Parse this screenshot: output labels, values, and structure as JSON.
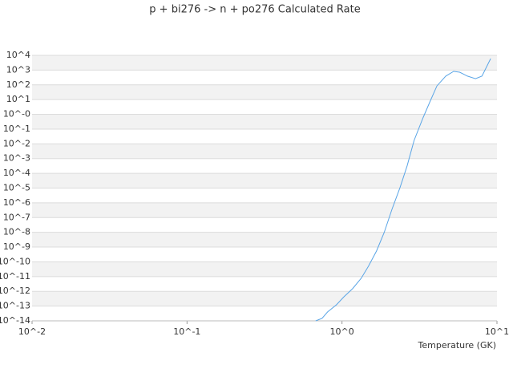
{
  "chart_data": {
    "type": "line",
    "title": "p + bi276 -> n + po276 Calculated Rate",
    "x_label": "Temperature (GK)",
    "log_x": true,
    "log_y": true,
    "grid": true,
    "xlim": [
      0.01,
      10
    ],
    "xticks": [
      {
        "value": 0.01,
        "label": "10^-2"
      },
      {
        "value": 0.1,
        "label": "10^-1"
      },
      {
        "value": 1,
        "label": "10^0"
      },
      {
        "value": 10,
        "label": "10^1"
      }
    ],
    "ylim": [
      1e-14,
      10000
    ],
    "yticks": [
      {
        "value": 1e-14,
        "label": "10^-14"
      },
      {
        "value": 1e-13,
        "label": "10^-13"
      },
      {
        "value": 1e-12,
        "label": "10^-12"
      },
      {
        "value": 1e-11,
        "label": "10^-11"
      },
      {
        "value": 1e-10,
        "label": "10^-10"
      },
      {
        "value": 1e-09,
        "label": "10^-9"
      },
      {
        "value": 1e-08,
        "label": "10^-8"
      },
      {
        "value": 1e-07,
        "label": "10^-7"
      },
      {
        "value": 1e-06,
        "label": "10^-6"
      },
      {
        "value": 1e-05,
        "label": "10^-5"
      },
      {
        "value": 0.0001,
        "label": "10^-4"
      },
      {
        "value": 0.001,
        "label": "10^-3"
      },
      {
        "value": 0.01,
        "label": "10^-2"
      },
      {
        "value": 0.1,
        "label": "10^-1"
      },
      {
        "value": 1,
        "label": "10^-0"
      },
      {
        "value": 10,
        "label": "10^1"
      },
      {
        "value": 100,
        "label": "10^2"
      },
      {
        "value": 1000,
        "label": "10^3"
      },
      {
        "value": 10000,
        "label": "10^4"
      }
    ],
    "x": [
      0.676,
      0.743,
      0.807,
      0.918,
      1.03,
      1.17,
      1.33,
      1.48,
      1.67,
      1.87,
      2.1,
      2.37,
      2.63,
      2.92,
      3.33,
      3.69,
      4.1,
      4.67,
      5.25,
      5.75,
      6.45,
      7.27,
      8,
      9.1
    ],
    "series": [
      {
        "color": "#5aa5e6",
        "values": [
          1e-14,
          1.45e-14,
          4e-14,
          1.2e-13,
          4.3e-13,
          1.5e-12,
          7.6e-12,
          5e-11,
          5.4e-10,
          9.5e-09,
          3.6e-07,
          1.1e-05,
          0.00032,
          0.017,
          0.57,
          7,
          85,
          390,
          820,
          720,
          390,
          260,
          390,
          6000
        ]
      }
    ]
  }
}
